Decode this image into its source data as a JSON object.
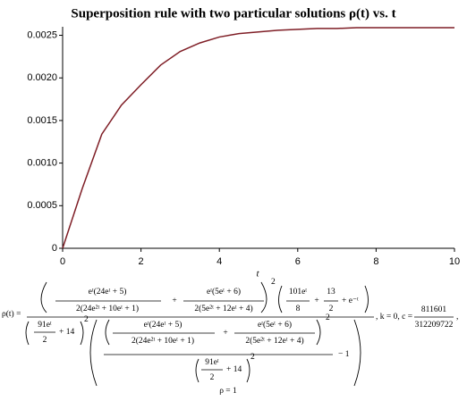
{
  "chart_data": {
    "type": "line",
    "title": "Superposition rule with two particular solutions ρ(t) vs. t",
    "x_label": "t",
    "x": [
      0,
      0.5,
      1,
      1.5,
      2,
      2.5,
      3,
      3.5,
      4,
      4.5,
      5,
      5.5,
      6,
      6.5,
      7,
      7.5,
      8,
      8.5,
      9,
      9.5,
      10
    ],
    "series": [
      {
        "color": "#7f1e26",
        "values": [
          0,
          0.0007,
          0.00134,
          0.00168,
          0.00192,
          0.00215,
          0.00231,
          0.00241,
          0.00248,
          0.00252,
          0.00254,
          0.00256,
          0.00257,
          0.00258,
          0.00258,
          0.00259,
          0.00259,
          0.00259,
          0.00259,
          0.00259,
          0.00259
        ]
      }
    ],
    "xlim": [
      0,
      10
    ],
    "xticks": [
      0,
      2,
      4,
      6,
      8,
      10
    ],
    "ylim": [
      0,
      0.0026
    ],
    "yticks": [
      0,
      0.0005,
      {
        "value": 0.001,
        "label": "0.0010"
      },
      0.0015,
      {
        "value": 0.002,
        "label": "0.0020"
      },
      0.0025
    ]
  },
  "formula": [
    "ρ(t) =",
    "eᵗ(24eᵗ + 5)",
    "2(24e²ᵗ + 10eᵗ + 1)",
    "+",
    "eᵗ(5eᵗ + 6)",
    "2(5e²ᵗ + 12eᵗ + 4)",
    "2",
    "101eᵗ",
    "8",
    "+",
    "13",
    "2",
    "+ e⁻ᵗ",
    "91eᵗ",
    "2",
    "+ 14",
    "2",
    "eᵗ(24eᵗ + 5)",
    "2(24e²ᵗ + 10eᵗ + 1)",
    "+",
    "eᵗ(5eᵗ + 6)",
    "2(5e²ᵗ + 12eᵗ + 4)",
    "2",
    "91eᵗ",
    "2",
    "+ 14",
    "2",
    "− 1",
    ", k = 0, c =",
    "811601",
    "312209722",
    ",",
    "ρ = 1"
  ]
}
